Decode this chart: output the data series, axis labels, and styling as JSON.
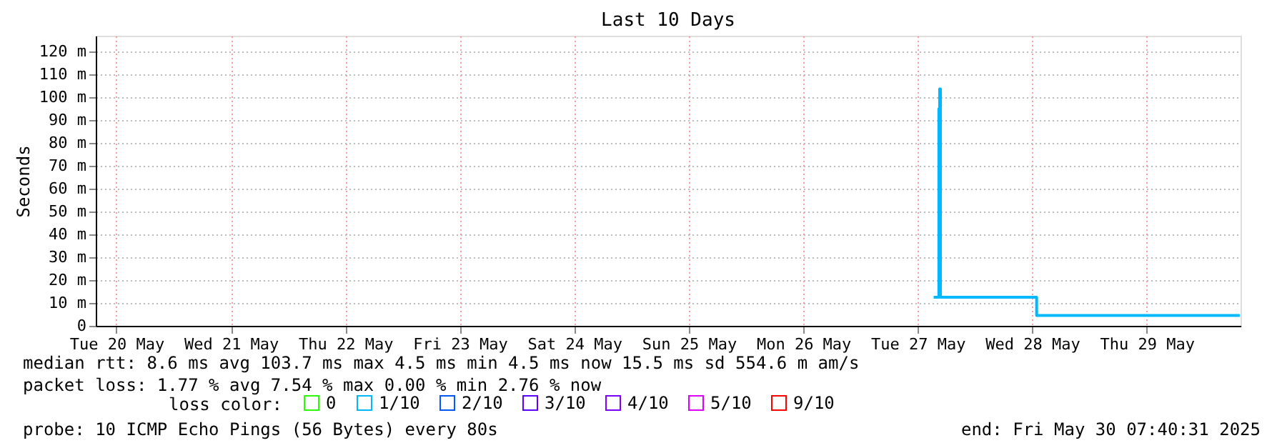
{
  "chart_data": {
    "type": "step",
    "title": "Last 10 Days",
    "ylabel": "Seconds",
    "legend_title": "loss color:",
    "x": [
      "2025-05-27T15:20",
      "2025-05-27T16:20",
      "2025-05-27T16:25",
      "2025-05-27T16:35",
      "2025-05-27T16:45",
      "2025-05-28T12:50",
      "2025-05-28T12:55",
      "2025-05-30T07:30"
    ],
    "series": [
      {
        "name": "0",
        "color": "#26ff00",
        "values": [
          null,
          null,
          null,
          null,
          null,
          null,
          null,
          null
        ]
      },
      {
        "name": "1/10",
        "color": "#00b8ff",
        "values": [
          12.5,
          12.5,
          95,
          103.7,
          12.5,
          12.5,
          4.5,
          4.5
        ]
      },
      {
        "name": "2/10",
        "color": "#0059ff",
        "values": [
          null,
          null,
          null,
          null,
          null,
          null,
          null,
          null
        ]
      },
      {
        "name": "3/10",
        "color": "#5e00ff",
        "values": [
          null,
          null,
          null,
          null,
          null,
          null,
          null,
          null
        ]
      },
      {
        "name": "4/10",
        "color": "#7e00ff",
        "values": [
          null,
          null,
          null,
          null,
          null,
          null,
          null,
          null
        ]
      },
      {
        "name": "5/10",
        "color": "#dd00ff",
        "values": [
          null,
          null,
          null,
          null,
          null,
          null,
          null,
          null
        ]
      },
      {
        "name": "9/10",
        "color": "#ff0000",
        "values": [
          null,
          null,
          null,
          null,
          null,
          null,
          null,
          null
        ]
      }
    ],
    "xlim": [
      "2025-05-20T07:40",
      "2025-05-30T07:40"
    ],
    "xticks": [
      {
        "value": "2025-05-20T12:00",
        "label": "Tue 20 May"
      },
      {
        "value": "2025-05-21T12:00",
        "label": "Wed 21 May"
      },
      {
        "value": "2025-05-22T12:00",
        "label": "Thu 22 May"
      },
      {
        "value": "2025-05-23T12:00",
        "label": "Fri 23 May"
      },
      {
        "value": "2025-05-24T12:00",
        "label": "Sat 24 May"
      },
      {
        "value": "2025-05-25T12:00",
        "label": "Sun 25 May"
      },
      {
        "value": "2025-05-26T12:00",
        "label": "Mon 26 May"
      },
      {
        "value": "2025-05-27T12:00",
        "label": "Tue 27 May"
      },
      {
        "value": "2025-05-28T12:00",
        "label": "Wed 28 May"
      },
      {
        "value": "2025-05-29T12:00",
        "label": "Thu 29 May"
      }
    ],
    "ylim": [
      0,
      127
    ],
    "yticks": [
      0,
      {
        "value": 10,
        "label": "10 m"
      },
      {
        "value": 20,
        "label": "20 m"
      },
      {
        "value": 30,
        "label": "30 m"
      },
      {
        "value": 40,
        "label": "40 m"
      },
      {
        "value": 50,
        "label": "50 m"
      },
      {
        "value": 60,
        "label": "60 m"
      },
      {
        "value": 70,
        "label": "70 m"
      },
      {
        "value": 80,
        "label": "80 m"
      },
      {
        "value": 90,
        "label": "90 m"
      },
      {
        "value": 100,
        "label": "100 m"
      },
      {
        "value": 110,
        "label": "110 m"
      },
      {
        "value": 120,
        "label": "120 m"
      }
    ],
    "grid": true,
    "legend": "bottom",
    "marker": "none",
    "line_style": "solid",
    "annotations": [
      "median rtt:  8.6 ms avg  103.7 ms max  4.5 ms min  4.5 ms now  15.5 ms sd  554.6 m am/s",
      "packet loss: 1.77 % avg  7.54 % max  0.00 % min  2.76 % now",
      "probe:       10 ICMP Echo Pings (56 Bytes) every 80s",
      "end: Fri May 30 07:40:31 2025"
    ]
  }
}
